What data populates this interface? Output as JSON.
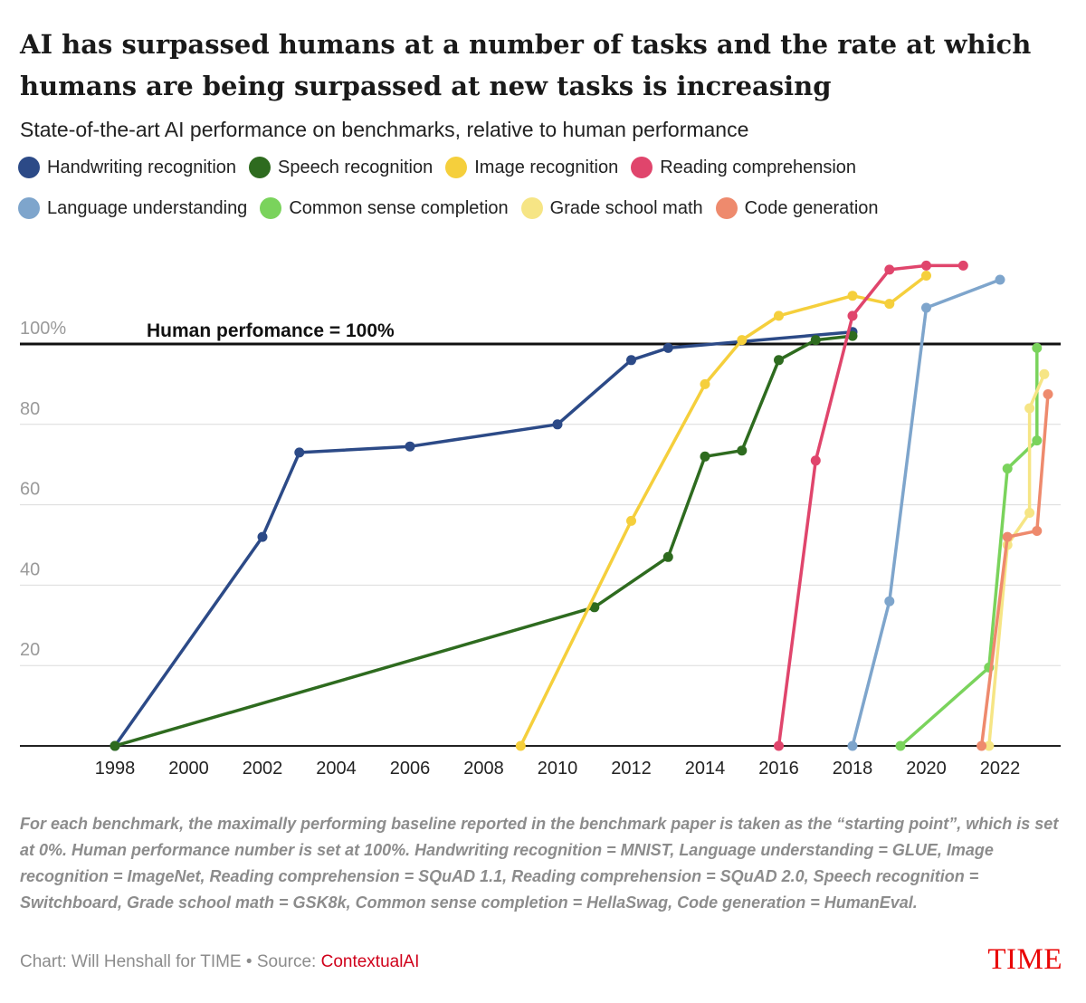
{
  "chart_data": {
    "type": "line",
    "title": "AI has surpassed humans at a number of tasks and the rate at which humans are being surpassed at new tasks is increasing",
    "subtitle": "State-of-the-art AI performance on benchmarks, relative to human performance",
    "xlabel": "",
    "ylabel": "",
    "x_ticks": [
      "1998",
      "2000",
      "2002",
      "2004",
      "2006",
      "2008",
      "2010",
      "2012",
      "2014",
      "2016",
      "2018",
      "2020",
      "2022"
    ],
    "y_ticks": [
      {
        "value": 100,
        "label": "100%"
      },
      {
        "value": 80,
        "label": "80"
      },
      {
        "value": 60,
        "label": "60"
      },
      {
        "value": 40,
        "label": "40"
      },
      {
        "value": 20,
        "label": "20"
      }
    ],
    "xlim": [
      1998,
      2024
    ],
    "ylim": [
      0,
      120
    ],
    "grid": true,
    "legend_position": "top",
    "reference_line": {
      "value": 100,
      "label": "Human perfomance = 100%"
    },
    "series": [
      {
        "name": "Handwriting recognition",
        "color": "#2c4a87",
        "points": [
          [
            1998.0,
            0
          ],
          [
            2002.0,
            52
          ],
          [
            2003.0,
            73
          ],
          [
            2006.0,
            74.5
          ],
          [
            2010.0,
            80
          ],
          [
            2012.0,
            96
          ],
          [
            2013.0,
            99
          ],
          [
            2018.0,
            103
          ]
        ]
      },
      {
        "name": "Speech recognition",
        "color": "#2e6b1f",
        "points": [
          [
            1998.0,
            0
          ],
          [
            2011.0,
            34.5
          ],
          [
            2013.0,
            47
          ],
          [
            2014.0,
            72
          ],
          [
            2015.0,
            73.5
          ],
          [
            2016.0,
            96
          ],
          [
            2017.0,
            101
          ],
          [
            2018.0,
            102
          ]
        ]
      },
      {
        "name": "Image recognition",
        "color": "#f5cf3c",
        "points": [
          [
            2009.0,
            0
          ],
          [
            2012.0,
            56
          ],
          [
            2014.0,
            90
          ],
          [
            2015.0,
            101
          ],
          [
            2016.0,
            107
          ],
          [
            2018.0,
            112
          ],
          [
            2019.0,
            110
          ],
          [
            2020.0,
            117
          ]
        ]
      },
      {
        "name": "Reading comprehension",
        "color": "#e0456c",
        "points": [
          [
            2016.0,
            0
          ],
          [
            2017.0,
            71
          ],
          [
            2018.0,
            107
          ],
          [
            2019.0,
            118.5
          ],
          [
            2020.0,
            119.5
          ],
          [
            2021.0,
            119.5
          ]
        ]
      },
      {
        "name": "Language understanding",
        "color": "#7ea5cc",
        "points": [
          [
            2018.0,
            0
          ],
          [
            2019.0,
            36
          ],
          [
            2020.0,
            109
          ],
          [
            2022.0,
            116
          ]
        ]
      },
      {
        "name": "Common sense completion",
        "color": "#7ad35c",
        "points": [
          [
            2019.3,
            0
          ],
          [
            2021.7,
            19.5
          ],
          [
            2022.2,
            69
          ],
          [
            2023.0,
            76
          ],
          [
            2023.0,
            99
          ]
        ]
      },
      {
        "name": "Grade school math",
        "color": "#f6e585",
        "points": [
          [
            2021.7,
            0
          ],
          [
            2022.2,
            50
          ],
          [
            2022.8,
            58
          ],
          [
            2022.8,
            84
          ],
          [
            2023.2,
            92.5
          ]
        ]
      },
      {
        "name": "Code generation",
        "color": "#ee8a6d",
        "points": [
          [
            2021.5,
            0
          ],
          [
            2022.2,
            52
          ],
          [
            2023.0,
            53.5
          ],
          [
            2023.3,
            87.5
          ]
        ]
      }
    ]
  },
  "footnote": "For each benchmark, the maximally performing baseline reported in the benchmark paper is taken as the “starting point”, which is set at 0%. Human performance number is set at 100%. Handwriting recognition = MNIST, Language understanding = GLUE, Image recognition = ImageNet, Reading comprehension = SQuAD 1.1, Reading comprehension = SQuAD 2.0, Speech recognition = Switchboard, Grade school math = GSK8k, Common sense completion = HellaSwag, Code generation = HumanEval.",
  "credit": {
    "chart_by": "Chart: Will Henshall for TIME",
    "separator": "•",
    "source_label": "Source:",
    "source_name": "ContextualAI"
  },
  "brand": "TIME"
}
